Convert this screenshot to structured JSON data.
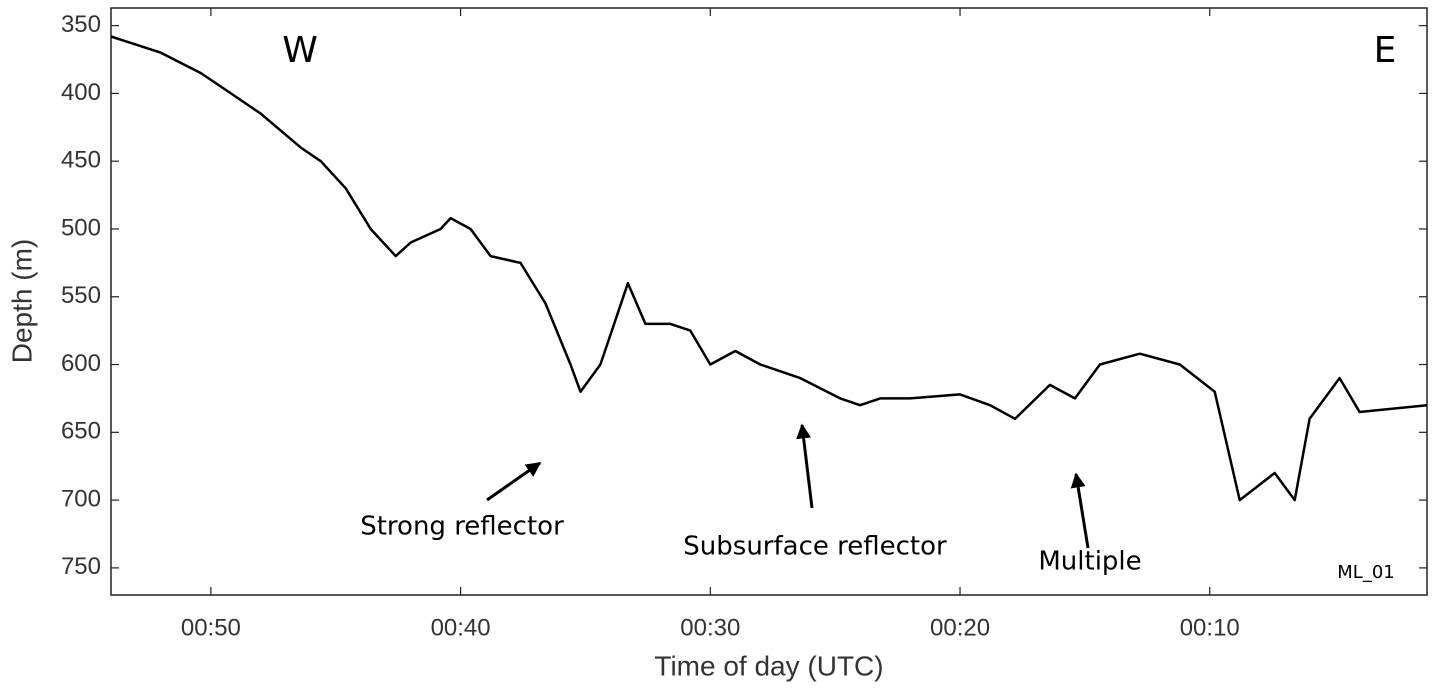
{
  "chart_data": {
    "type": "line",
    "xlabel": "Time of day (UTC)",
    "ylabel": "Depth (m)",
    "xlim": [
      54,
      1.3
    ],
    "ylim": [
      770,
      337
    ],
    "xticks": [
      {
        "value": 50,
        "label": "00:50"
      },
      {
        "value": 40,
        "label": "00:40"
      },
      {
        "value": 30,
        "label": "00:30"
      },
      {
        "value": 20,
        "label": "00:20"
      },
      {
        "value": 10,
        "label": "00:10"
      }
    ],
    "yticks": [
      350,
      400,
      450,
      500,
      550,
      600,
      650,
      700,
      750
    ],
    "annotations": [
      "W",
      "E",
      "Strong reflector",
      "Subsurface reflector",
      "Multiple",
      "ML_01"
    ],
    "series": [
      {
        "color": "#000000",
        "x": [
          54.0,
          52.0,
          50.4,
          49.2,
          48.0,
          46.4,
          45.6,
          44.6,
          43.6,
          42.6,
          42.0,
          40.8,
          40.4,
          39.6,
          38.8,
          37.6,
          36.6,
          35.6,
          35.2,
          34.4,
          33.3,
          32.6,
          31.6,
          30.8,
          30.0,
          29.0,
          28.0,
          26.4,
          24.8,
          24.0,
          23.2,
          22.0,
          20.0,
          18.8,
          17.8,
          16.4,
          15.4,
          14.4,
          12.8,
          11.2,
          9.8,
          8.8,
          7.4,
          6.6,
          6.0,
          4.8,
          4.0,
          1.3
        ],
        "values": [
          358,
          370,
          385,
          400,
          415,
          440,
          450,
          470,
          500,
          520,
          510,
          500,
          492,
          500,
          520,
          525,
          555,
          600,
          620,
          600,
          540,
          570,
          570,
          575,
          600,
          590,
          600,
          610,
          625,
          630,
          625,
          625,
          622,
          630,
          640,
          615,
          625,
          600,
          592,
          600,
          620,
          700,
          680,
          700,
          640,
          610,
          635,
          630
        ]
      }
    ]
  }
}
